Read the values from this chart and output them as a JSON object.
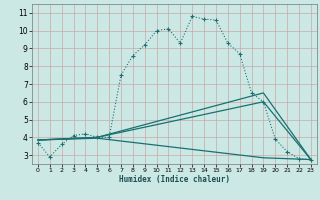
{
  "xlabel": "Humidex (Indice chaleur)",
  "bg_color": "#cce8e5",
  "grid_color": "#b0d0cc",
  "line_color": "#1a7070",
  "xlim": [
    -0.5,
    23.5
  ],
  "ylim": [
    2.5,
    11.5
  ],
  "xticks": [
    0,
    1,
    2,
    3,
    4,
    5,
    6,
    7,
    8,
    9,
    10,
    11,
    12,
    13,
    14,
    15,
    16,
    17,
    18,
    19,
    20,
    21,
    22,
    23
  ],
  "yticks": [
    3,
    4,
    5,
    6,
    7,
    8,
    9,
    10,
    11
  ],
  "line1_x": [
    0,
    1,
    2,
    3,
    4,
    5,
    6,
    7,
    8,
    9,
    10,
    11,
    12,
    13,
    14,
    15,
    16,
    17,
    18,
    19,
    20,
    21,
    22,
    23
  ],
  "line1_y": [
    3.7,
    2.9,
    3.6,
    4.1,
    4.2,
    4.0,
    4.0,
    7.5,
    8.6,
    9.2,
    10.0,
    10.1,
    9.3,
    10.8,
    10.65,
    10.6,
    9.3,
    8.7,
    6.5,
    6.0,
    3.9,
    3.2,
    2.8,
    2.75
  ],
  "line2_x": [
    0,
    5,
    19,
    23
  ],
  "line2_y": [
    3.85,
    4.0,
    6.5,
    2.75
  ],
  "line3_x": [
    0,
    5,
    19,
    23
  ],
  "line3_y": [
    3.85,
    4.0,
    6.0,
    2.75
  ],
  "line4_x": [
    0,
    5,
    19,
    23
  ],
  "line4_y": [
    3.85,
    3.95,
    2.85,
    2.75
  ]
}
